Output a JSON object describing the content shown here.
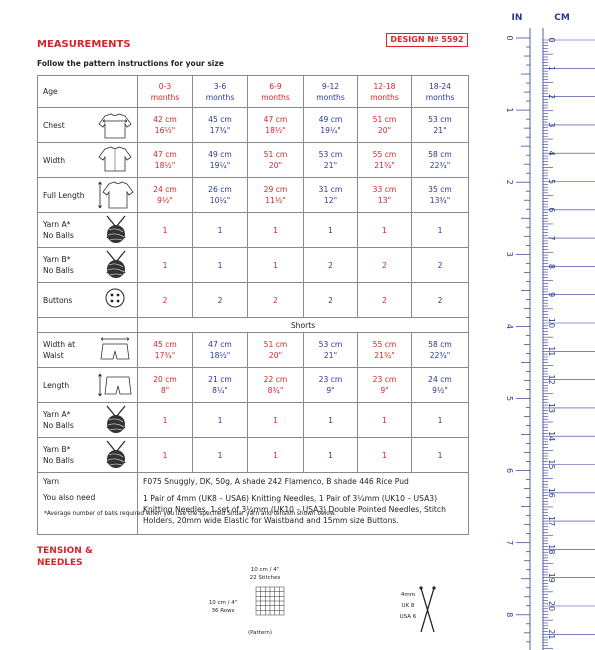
{
  "header": {
    "title": "MEASUREMENTS",
    "design": "DESIGN Nº 5592",
    "subtitle": "Follow the pattern instructions for your size"
  },
  "table": {
    "age_label": "Age",
    "sizes": [
      [
        "0-3",
        "months"
      ],
      [
        "3-6",
        "months"
      ],
      [
        "6-9",
        "months"
      ],
      [
        "9-12",
        "months"
      ],
      [
        "12-18",
        "months"
      ],
      [
        "18-24",
        "months"
      ]
    ],
    "rows": [
      {
        "label": [
          "Chest"
        ],
        "values": [
          [
            "42 cm",
            "16½\""
          ],
          [
            "45 cm",
            "17¾\""
          ],
          [
            "47 cm",
            "18½\""
          ],
          [
            "49 cm",
            "19¼\""
          ],
          [
            "51 cm",
            "20\""
          ],
          [
            "53 cm",
            "21\""
          ]
        ]
      },
      {
        "label": [
          "Width"
        ],
        "values": [
          [
            "47 cm",
            "18½\""
          ],
          [
            "49 cm",
            "19¼\""
          ],
          [
            "51 cm",
            "20\""
          ],
          [
            "53 cm",
            "21\""
          ],
          [
            "55 cm",
            "21¾\""
          ],
          [
            "58 cm",
            "22¾\""
          ]
        ]
      },
      {
        "label": [
          "Full Length"
        ],
        "values": [
          [
            "24 cm",
            "9½\""
          ],
          [
            "26 cm",
            "10¼\""
          ],
          [
            "29 cm",
            "11½\""
          ],
          [
            "31 cm",
            "12\""
          ],
          [
            "33 cm",
            "13\""
          ],
          [
            "35 cm",
            "13¾\""
          ]
        ]
      },
      {
        "label": [
          "Yarn A*",
          "No Balls"
        ],
        "values": [
          [
            "1"
          ],
          [
            "1"
          ],
          [
            "1"
          ],
          [
            "1"
          ],
          [
            "1"
          ],
          [
            "1"
          ]
        ]
      },
      {
        "label": [
          "Yarn B*",
          "No Balls"
        ],
        "values": [
          [
            "1"
          ],
          [
            "1"
          ],
          [
            "1"
          ],
          [
            "2"
          ],
          [
            "2"
          ],
          [
            "2"
          ]
        ]
      },
      {
        "label": [
          "Buttons"
        ],
        "values": [
          [
            "2"
          ],
          [
            "2"
          ],
          [
            "2"
          ],
          [
            "2"
          ],
          [
            "2"
          ],
          [
            "2"
          ]
        ]
      }
    ],
    "shorts_label": "Shorts",
    "shorts_rows": [
      {
        "label": [
          "Width at",
          "Waist"
        ],
        "values": [
          [
            "45 cm",
            "17¾\""
          ],
          [
            "47 cm",
            "18½\""
          ],
          [
            "51 cm",
            "20\""
          ],
          [
            "53 cm",
            "21\""
          ],
          [
            "55 cm",
            "21¾\""
          ],
          [
            "58 cm",
            "22¾\""
          ]
        ]
      },
      {
        "label": [
          "Length"
        ],
        "values": [
          [
            "20 cm",
            "8\""
          ],
          [
            "21 cm",
            "8¼\""
          ],
          [
            "22 cm",
            "8¾\""
          ],
          [
            "23 cm",
            "9\""
          ],
          [
            "23 cm",
            "9\""
          ],
          [
            "24 cm",
            "9½\""
          ]
        ]
      },
      {
        "label": [
          "Yarn A*",
          "No Balls"
        ],
        "values": [
          [
            "1"
          ],
          [
            "1"
          ],
          [
            "1"
          ],
          [
            "1"
          ],
          [
            "1"
          ],
          [
            "1"
          ]
        ]
      },
      {
        "label": [
          "Yarn B*",
          "No Balls"
        ],
        "values": [
          [
            "1"
          ],
          [
            "1"
          ],
          [
            "1"
          ],
          [
            "1"
          ],
          [
            "1"
          ],
          [
            "1"
          ]
        ]
      }
    ],
    "yarn_label": "Yarn",
    "yarn": "F075 Snuggly, DK, 50g, A shade 242 Flamenco, B shade 446 Rice Pud",
    "need_label": "You also need",
    "need": "1 Pair of 4mm (UK8 – USA6) Knitting Needles, 1 Pair of 3¼mm (UK10 – USA3) Knitting Needles, 1 set of 3¼mm (UK10 – USA3) Double Pointed Needles, Stitch Holders, 20mm wide Elastic for Waistband and 15mm size Buttons."
  },
  "footnote": "*Average number of balls required when you use the specified Sirdar yarn and tension shown below.",
  "tension": {
    "title": [
      "TENSION &",
      "NEEDLES"
    ],
    "width": "10 cm / 4\"",
    "stitches": "22 Stitches",
    "height": "10 cm / 4\"",
    "rows": "36 Rows",
    "pattern": "(Pattern)",
    "needles": [
      "4mm",
      "UK 8",
      "USA 6"
    ]
  },
  "ruler": {
    "in_title": "IN",
    "cm_title": "CM",
    "inches": [
      "0",
      "1",
      "2",
      "3",
      "4",
      "5",
      "6",
      "7",
      "8"
    ],
    "cm": [
      "0",
      "1",
      "2",
      "3",
      "4",
      "5",
      "6",
      "7",
      "8",
      "9",
      "10",
      "11",
      "12",
      "13",
      "14",
      "15",
      "16",
      "17",
      "18",
      "19",
      "20",
      "21"
    ]
  }
}
